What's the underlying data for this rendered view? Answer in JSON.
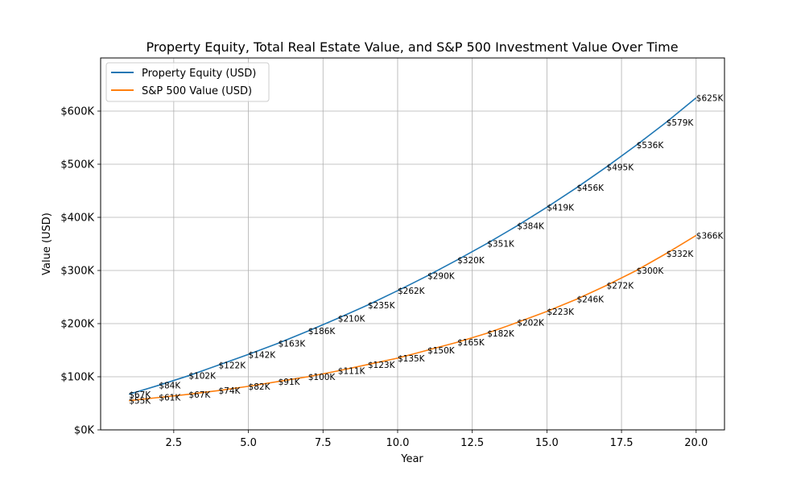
{
  "chart_data": {
    "type": "line",
    "title": "Property Equity, Total Real Estate Value, and S&P 500 Investment Value Over Time",
    "xlabel": "Year",
    "ylabel": "Value (USD)",
    "xlim": [
      0.05,
      20.95
    ],
    "ylim": [
      0,
      700000
    ],
    "xticks": [
      2.5,
      5.0,
      7.5,
      10.0,
      12.5,
      15.0,
      17.5,
      20.0
    ],
    "xtick_labels": [
      "2.5",
      "5.0",
      "7.5",
      "10.0",
      "12.5",
      "15.0",
      "17.5",
      "20.0"
    ],
    "yticks": [
      0,
      100000,
      200000,
      300000,
      400000,
      500000,
      600000
    ],
    "ytick_labels": [
      "$0K",
      "$100K",
      "$200K",
      "$300K",
      "$400K",
      "$500K",
      "$600K"
    ],
    "grid": true,
    "legend_position": "top-left",
    "x": [
      1,
      2,
      3,
      4,
      5,
      6,
      7,
      8,
      9,
      10,
      11,
      12,
      13,
      14,
      15,
      16,
      17,
      18,
      19,
      20
    ],
    "series": [
      {
        "name": "Property Equity (USD)",
        "color": "#1f77b4",
        "values": [
          67000,
          84000,
          102000,
          122000,
          142000,
          163000,
          186000,
          210000,
          235000,
          262000,
          290000,
          320000,
          351000,
          384000,
          419000,
          456000,
          495000,
          536000,
          579000,
          625000
        ],
        "labels": [
          "$67K",
          "$84K",
          "$102K",
          "$122K",
          "$142K",
          "$163K",
          "$186K",
          "$210K",
          "$235K",
          "$262K",
          "$290K",
          "$320K",
          "$351K",
          "$384K",
          "$419K",
          "$456K",
          "$495K",
          "$536K",
          "$579K",
          "$625K"
        ]
      },
      {
        "name": "S&P 500 Value (USD)",
        "color": "#ff7f0e",
        "values": [
          55000,
          61000,
          67000,
          74000,
          82000,
          91000,
          100000,
          111000,
          123000,
          135000,
          150000,
          165000,
          182000,
          202000,
          223000,
          246000,
          272000,
          300000,
          332000,
          366000
        ],
        "labels": [
          "$55K",
          "$61K",
          "$67K",
          "$74K",
          "$82K",
          "$91K",
          "$100K",
          "$111K",
          "$123K",
          "$135K",
          "$150K",
          "$165K",
          "$182K",
          "$202K",
          "$223K",
          "$246K",
          "$272K",
          "$300K",
          "$332K",
          "$366K"
        ]
      }
    ]
  }
}
